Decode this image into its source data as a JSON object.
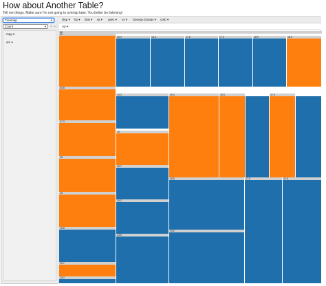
{
  "page": {
    "title": "How about Another Table?",
    "subtitle": "Tell me things. Make sure I'm not going to overlap later. You better be listening!"
  },
  "controls": {
    "renderer": "Treemap",
    "aggregator": "Count",
    "sort_icon": "↕",
    "order_icon": "↔"
  },
  "unused_attrs": [
    "mpg",
    "am"
  ],
  "col_attrs": [
    "disp",
    "hp",
    "drat",
    "wt",
    "qsec",
    "vs",
    "George.Dontas",
    "carb"
  ],
  "row_attrs": [
    "cyl"
  ],
  "colors": {
    "orange": "#ff7f0e",
    "blue": "#1f6fad",
    "label_bg": "#d0d0d0",
    "panel_bg": "#ececec"
  },
  "treemap": {
    "root_label": "All",
    "cells": [
      {
        "label": "26",
        "color": "orange"
      },
      {
        "label": "16.4",
        "color": "blue"
      },
      {
        "label": "16.4",
        "color": "blue"
      },
      {
        "label": "17.6",
        "color": "blue"
      },
      {
        "label": "17.9",
        "color": "blue"
      },
      {
        "label": "18.9",
        "color": "blue"
      },
      {
        "label": "18.9",
        "color": "orange"
      },
      {
        "label": "30.5",
        "color": "orange"
      },
      {
        "label": "14.3",
        "color": "blue"
      },
      {
        "label": "30.4",
        "color": "orange"
      },
      {
        "label": "20.5",
        "color": "orange"
      },
      {
        "label": "",
        "color": "blue"
      },
      {
        "label": "27.4",
        "color": "orange"
      },
      {
        "label": "",
        "color": "blue"
      },
      {
        "label": "27.3",
        "color": "orange"
      },
      {
        "label": "15",
        "color": "orange"
      },
      {
        "label": "28",
        "color": "orange"
      },
      {
        "label": "15.7",
        "color": "blue"
      },
      {
        "label": "16",
        "color": "orange"
      },
      {
        "label": "15.2",
        "color": "blue"
      },
      {
        "label": "15.8",
        "color": "blue"
      },
      {
        "label": "28.5",
        "color": "blue"
      },
      {
        "label": "17.5",
        "color": "blue"
      },
      {
        "label": "21.5",
        "color": "blue"
      },
      {
        "label": "14.5",
        "color": "blue"
      },
      {
        "label": "19.2",
        "color": "blue"
      },
      {
        "label": "15.7",
        "color": "orange"
      },
      {
        "label": "15.2",
        "color": "blue"
      }
    ]
  }
}
